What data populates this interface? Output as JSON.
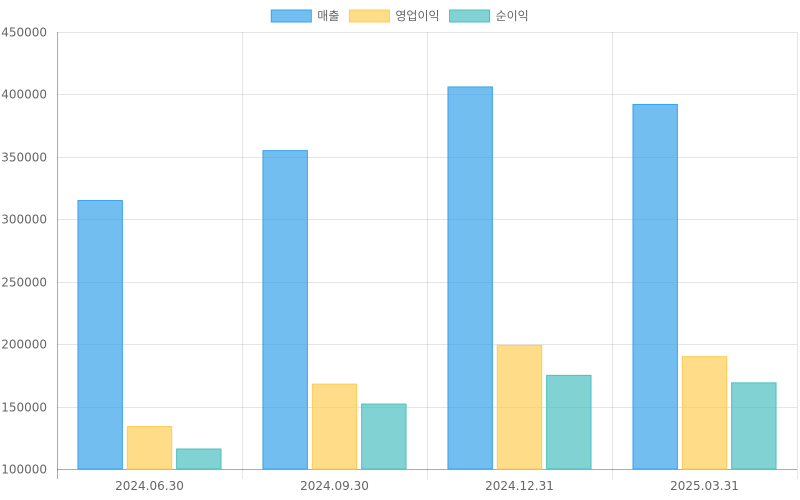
{
  "chart_data": {
    "type": "bar",
    "categories": [
      "2024.06.30",
      "2024.09.30",
      "2024.12.31",
      "2025.03.31"
    ],
    "series": [
      {
        "name": "매출",
        "values": [
          315000,
          355000,
          406000,
          392000
        ],
        "fill": "#36a2eb",
        "stroke": "#36a2eb"
      },
      {
        "name": "영업이익",
        "values": [
          134000,
          168000,
          199000,
          190000
        ],
        "fill": "#ffcd56",
        "stroke": "#ffcd56"
      },
      {
        "name": "순이익",
        "values": [
          116000,
          152000,
          175000,
          169000
        ],
        "fill": "#4bc0c0",
        "stroke": "#4bc0c0"
      }
    ],
    "ylim": [
      100000,
      450000
    ],
    "yticks": [
      "100000",
      "150000",
      "200000",
      "250000",
      "300000",
      "350000",
      "400000",
      "450000"
    ],
    "title": "",
    "xlabel": "",
    "ylabel": "",
    "legend": "top-center",
    "grid": true
  }
}
